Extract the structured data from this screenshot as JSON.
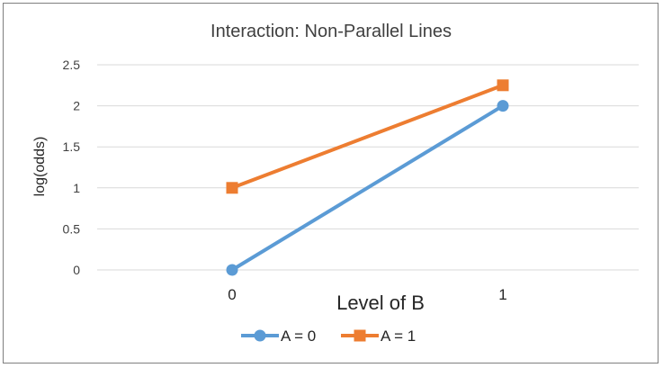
{
  "chart_data": {
    "type": "line",
    "title": "Interaction: Non-Parallel Lines",
    "xlabel": "Level of B",
    "ylabel": "log(odds)",
    "x": [
      0,
      1
    ],
    "x_tick_labels": [
      "0",
      "1"
    ],
    "ylim": [
      0,
      2.5
    ],
    "y_ticks": [
      0,
      0.5,
      1,
      1.5,
      2,
      2.5
    ],
    "y_tick_labels": [
      "0",
      "0.5",
      "1",
      "1.5",
      "2",
      "2.5"
    ],
    "grid": true,
    "legend_position": "bottom",
    "series": [
      {
        "name": "A = 0",
        "values": [
          0,
          2
        ],
        "color": "#5b9bd5",
        "marker": "circle"
      },
      {
        "name": "A = 1",
        "values": [
          1,
          2.25
        ],
        "color": "#ed7d31",
        "marker": "square"
      }
    ]
  }
}
